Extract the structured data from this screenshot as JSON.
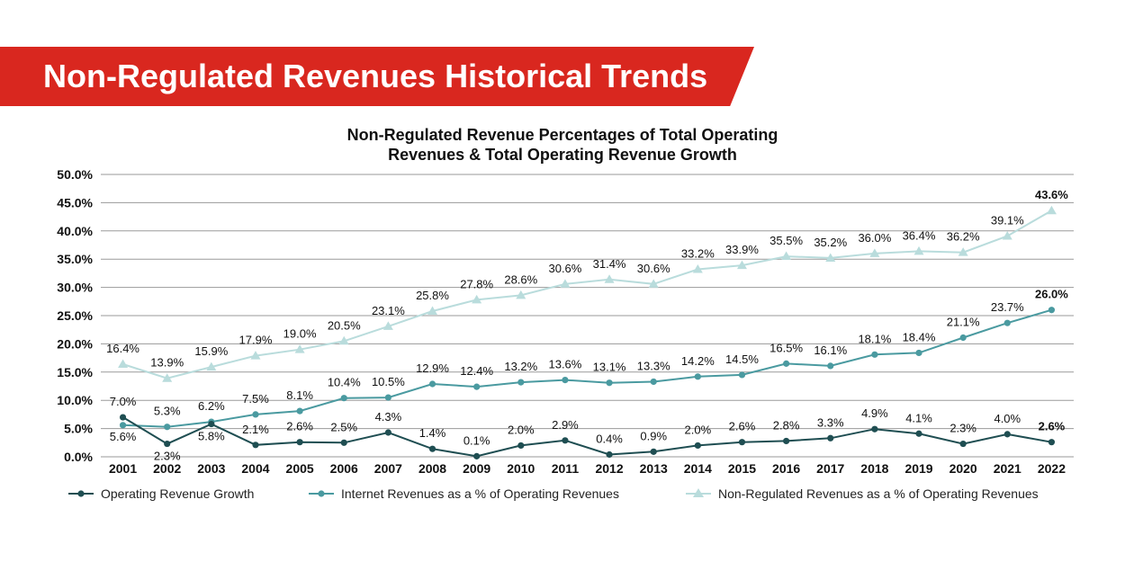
{
  "banner": {
    "title": "Non-Regulated Revenues Historical Trends"
  },
  "colors": {
    "banner": "#d9271f",
    "operating": "#1f4e52",
    "internet": "#4a9aa0",
    "nonregulated": "#b9dcdc",
    "grid": "#9a9a9a"
  },
  "chart_data": {
    "type": "line",
    "title_lines": [
      "Non-Regulated Revenue Percentages of Total Operating",
      "Revenues & Total Operating Revenue Growth"
    ],
    "categories": [
      "2001",
      "2002",
      "2003",
      "2004",
      "2005",
      "2006",
      "2007",
      "2008",
      "2009",
      "2010",
      "2011",
      "2012",
      "2013",
      "2014",
      "2015",
      "2016",
      "2017",
      "2018",
      "2019",
      "2020",
      "2021",
      "2022"
    ],
    "ylim": [
      0,
      50
    ],
    "yticks": [
      "0.0%",
      "5.0%",
      "10.0%",
      "15.0%",
      "20.0%",
      "25.0%",
      "30.0%",
      "35.0%",
      "40.0%",
      "45.0%",
      "50.0%"
    ],
    "grid": true,
    "legend_position": "bottom",
    "series": [
      {
        "name": "Operating Revenue Growth",
        "marker": "circle",
        "values": [
          7.0,
          2.3,
          5.8,
          2.1,
          2.6,
          2.5,
          4.3,
          1.4,
          0.1,
          2.0,
          2.9,
          0.4,
          0.9,
          2.0,
          2.6,
          2.8,
          3.3,
          4.9,
          4.1,
          2.3,
          4.0,
          2.6
        ],
        "labels": [
          "7.0%",
          "2.3%",
          "5.8%",
          "2.1%",
          "2.6%",
          "2.5%",
          "4.3%",
          "1.4%",
          "0.1%",
          "2.0%",
          "2.9%",
          "0.4%",
          "0.9%",
          "2.0%",
          "2.6%",
          "2.8%",
          "3.3%",
          "4.9%",
          "4.1%",
          "2.3%",
          "4.0%",
          "2.6%"
        ]
      },
      {
        "name": "Internet Revenues as a % of Operating Revenues",
        "marker": "circle",
        "values": [
          5.6,
          5.3,
          6.2,
          7.5,
          8.1,
          10.4,
          10.5,
          12.9,
          12.4,
          13.2,
          13.6,
          13.1,
          13.3,
          14.2,
          14.5,
          16.5,
          16.1,
          18.1,
          18.4,
          21.1,
          23.7,
          26.0
        ],
        "labels": [
          "5.6%",
          "5.3%",
          "6.2%",
          "7.5%",
          "8.1%",
          "10.4%",
          "10.5%",
          "12.9%",
          "12.4%",
          "13.2%",
          "13.6%",
          "13.1%",
          "13.3%",
          "14.2%",
          "14.5%",
          "16.5%",
          "16.1%",
          "18.1%",
          "18.4%",
          "21.1%",
          "23.7%",
          "26.0%"
        ]
      },
      {
        "name": "Non-Regulated Revenues as a % of Operating Revenues",
        "marker": "triangle",
        "values": [
          16.4,
          13.9,
          15.9,
          17.9,
          19.0,
          20.5,
          23.1,
          25.8,
          27.8,
          28.6,
          30.6,
          31.4,
          30.6,
          33.2,
          33.9,
          35.5,
          35.2,
          36.0,
          36.4,
          36.2,
          39.1,
          43.6
        ],
        "labels": [
          "16.4%",
          "13.9%",
          "15.9%",
          "17.9%",
          "19.0%",
          "20.5%",
          "23.1%",
          "25.8%",
          "27.8%",
          "28.6%",
          "30.6%",
          "31.4%",
          "30.6%",
          "33.2%",
          "33.9%",
          "35.5%",
          "35.2%",
          "36.0%",
          "36.4%",
          "36.2%",
          "39.1%",
          "43.6%"
        ]
      }
    ]
  }
}
